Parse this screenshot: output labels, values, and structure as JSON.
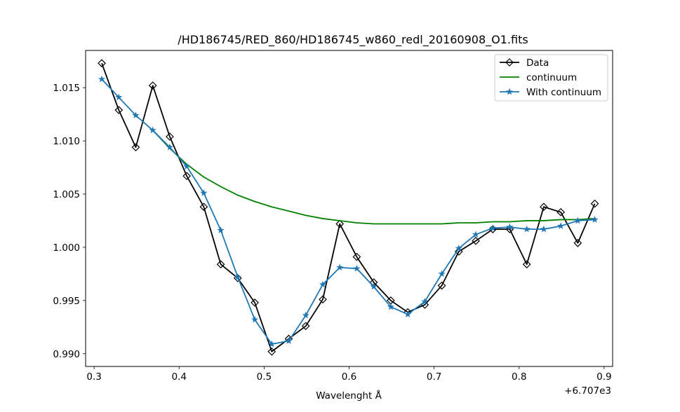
{
  "chart_data": {
    "type": "line",
    "title": "/HD186745/RED_860/HD186745_w860_redl_20160908_O1.fits",
    "xlabel": "Wavelenght Å",
    "ylabel": "",
    "x_offset_label": "+6.707e3",
    "xlim": [
      0.29,
      0.91
    ],
    "ylim": [
      0.9888,
      1.0185
    ],
    "x_ticks": [
      0.3,
      0.4,
      0.5,
      0.6,
      0.7,
      0.8,
      0.9
    ],
    "x_tick_labels": [
      "0.3",
      "0.4",
      "0.5",
      "0.6",
      "0.7",
      "0.8",
      "0.9"
    ],
    "y_ticks": [
      0.99,
      0.995,
      1.0,
      1.005,
      1.01,
      1.015
    ],
    "y_tick_labels": [
      "0.990",
      "0.995",
      "1.000",
      "1.005",
      "1.010",
      "1.015"
    ],
    "grid": false,
    "legend_position": "top-right",
    "x": [
      0.309,
      0.329,
      0.349,
      0.369,
      0.389,
      0.409,
      0.429,
      0.449,
      0.469,
      0.489,
      0.509,
      0.529,
      0.549,
      0.569,
      0.589,
      0.609,
      0.629,
      0.649,
      0.669,
      0.689,
      0.709,
      0.729,
      0.749,
      0.769,
      0.789,
      0.809,
      0.829,
      0.849,
      0.869,
      0.889
    ],
    "series": [
      {
        "name": "Data",
        "color": "#000000",
        "marker": "diamond",
        "values": [
          1.0173,
          1.0129,
          1.0094,
          1.0152,
          1.0104,
          1.0067,
          1.0038,
          0.9984,
          0.9971,
          0.9948,
          0.9902,
          0.9914,
          0.9926,
          0.9951,
          1.0022,
          0.9991,
          0.9967,
          0.995,
          0.9939,
          0.9946,
          0.9964,
          0.9996,
          1.0006,
          1.0017,
          1.0017,
          0.9984,
          1.0038,
          1.0033,
          1.0004,
          1.0041
        ]
      },
      {
        "name": "continuum",
        "color": "#008000",
        "marker": "none",
        "x": [
          0.369,
          0.389,
          0.409,
          0.429,
          0.449,
          0.469,
          0.489,
          0.509,
          0.529,
          0.549,
          0.569,
          0.589,
          0.609,
          0.629,
          0.649,
          0.669,
          0.689,
          0.709,
          0.729,
          0.749,
          0.769,
          0.789,
          0.809,
          0.829,
          0.849,
          0.869,
          0.889
        ],
        "values": [
          1.011,
          1.0093,
          1.0078,
          1.0066,
          1.0057,
          1.0049,
          1.0043,
          1.0038,
          1.0034,
          1.003,
          1.0027,
          1.0025,
          1.0023,
          1.0022,
          1.0022,
          1.0022,
          1.0022,
          1.0022,
          1.0023,
          1.0023,
          1.0024,
          1.0024,
          1.0025,
          1.0025,
          1.0026,
          1.0026,
          1.0027
        ]
      },
      {
        "name": "With continuum",
        "color": "#1f77b4",
        "marker": "star",
        "values": [
          1.0158,
          1.0141,
          1.0124,
          1.011,
          1.0094,
          1.0076,
          1.0051,
          1.0016,
          0.9972,
          0.9932,
          0.9909,
          0.9912,
          0.9936,
          0.9965,
          0.9981,
          0.998,
          0.9963,
          0.9944,
          0.9937,
          0.9949,
          0.9975,
          0.9999,
          1.0012,
          1.0018,
          1.0019,
          1.0017,
          1.0017,
          1.002,
          1.0025,
          1.0026
        ]
      }
    ]
  }
}
